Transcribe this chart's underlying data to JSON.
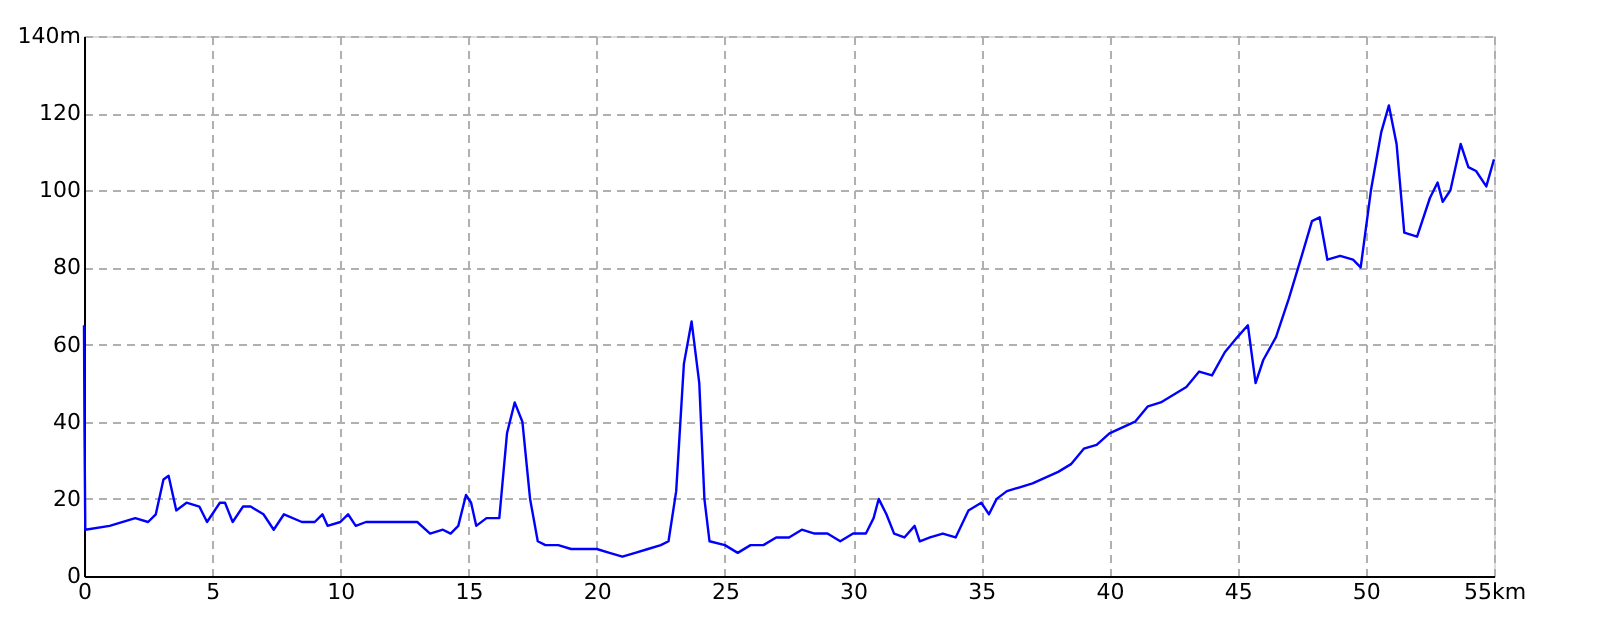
{
  "chart_data": {
    "type": "line",
    "x": [
      0,
      0.02,
      0.05,
      1,
      2,
      2.5,
      2.8,
      3.1,
      3.3,
      3.6,
      4,
      4.5,
      4.8,
      5.3,
      5.5,
      5.8,
      6.2,
      6.5,
      7,
      7.4,
      7.8,
      8.5,
      9,
      9.3,
      9.5,
      10,
      10.3,
      10.6,
      11,
      12,
      13,
      13.5,
      14,
      14.3,
      14.6,
      14.9,
      15.1,
      15.3,
      15.7,
      16.2,
      16.5,
      16.8,
      17.1,
      17.4,
      17.7,
      18,
      18.5,
      19,
      19.5,
      20,
      20.5,
      21,
      21.5,
      22,
      22.5,
      22.8,
      23.1,
      23.4,
      23.7,
      24,
      24.2,
      24.4,
      25,
      25.5,
      26,
      26.5,
      27,
      27.5,
      28,
      28.5,
      29,
      29.5,
      30,
      30.5,
      30.8,
      31,
      31.3,
      31.6,
      32,
      32.4,
      32.6,
      33,
      33.5,
      34,
      34.5,
      35,
      35.3,
      35.6,
      36,
      37,
      38,
      38.5,
      39,
      39.5,
      40,
      41,
      41.5,
      42,
      43,
      43.5,
      44,
      44.5,
      45,
      45.4,
      45.7,
      46,
      46.5,
      47,
      47.5,
      47.9,
      48.2,
      48.5,
      49,
      49.5,
      49.8,
      50.2,
      50.6,
      50.9,
      51.2,
      51.5,
      52,
      52.5,
      52.8,
      53,
      53.3,
      53.7,
      54,
      54.3,
      54.7,
      55
    ],
    "series": [
      {
        "color": "#0000ff",
        "values": [
          65,
          38,
          12,
          13,
          15,
          14,
          16,
          25,
          26,
          17,
          19,
          18,
          14,
          19,
          19,
          14,
          18,
          18,
          16,
          12,
          16,
          14,
          14,
          16,
          13,
          14,
          16,
          13,
          14,
          14,
          14,
          11,
          12,
          11,
          13,
          21,
          19,
          13,
          15,
          15,
          37,
          45,
          40,
          20,
          9,
          8,
          8,
          7,
          7,
          7,
          6,
          5,
          6,
          7,
          8,
          9,
          22,
          55,
          66,
          50,
          20,
          9,
          8,
          6,
          8,
          8,
          10,
          10,
          12,
          11,
          11,
          9,
          11,
          11,
          15,
          20,
          16,
          11,
          10,
          13,
          9,
          10,
          11,
          10,
          17,
          19,
          16,
          20,
          22,
          24,
          27,
          29,
          33,
          34,
          37,
          40,
          44,
          45,
          49,
          53,
          52,
          58,
          62,
          65,
          50,
          56,
          62,
          72,
          83,
          92,
          93,
          82,
          83,
          82,
          80,
          100,
          115,
          122,
          112,
          89,
          88,
          98,
          102,
          97,
          100,
          112,
          106,
          105,
          101,
          108
        ]
      }
    ],
    "xlim": [
      0,
      55
    ],
    "xticks": [
      0,
      5,
      10,
      15,
      20,
      25,
      30,
      35,
      40,
      45,
      50,
      {
        "value": 55,
        "label": "55km"
      }
    ],
    "ylim": [
      0,
      140
    ],
    "yticks": [
      0,
      20,
      40,
      60,
      80,
      100,
      120,
      {
        "value": 140,
        "label": "140m"
      }
    ],
    "grid": true,
    "marker": "none",
    "line_style": "solid"
  }
}
